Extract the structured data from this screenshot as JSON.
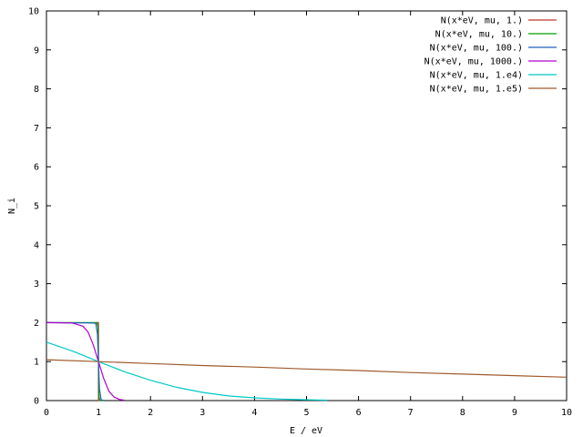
{
  "chart_data": {
    "type": "line",
    "title": "",
    "xlabel": "E / eV",
    "ylabel": "N_i",
    "xlim": [
      0,
      10
    ],
    "ylim": [
      0,
      10
    ],
    "xticks": [
      0,
      1,
      2,
      3,
      4,
      5,
      6,
      7,
      8,
      9,
      10
    ],
    "yticks": [
      0,
      1,
      2,
      3,
      4,
      5,
      6,
      7,
      8,
      9,
      10
    ],
    "grid": false,
    "legend_position": "top-right",
    "series": [
      {
        "name": "N(x*eV, mu, 1.)",
        "color": "#c0392b",
        "x": [
          0.95,
          1.0,
          1.0,
          1.05
        ],
        "y": [
          2.0,
          2.0,
          0.0,
          0.0
        ]
      },
      {
        "name": "N(x*eV, mu, 10.)",
        "color": "#00a000",
        "x": [
          0,
          0.9,
          0.97,
          0.99,
          1.0,
          1.01,
          1.03,
          1.1
        ],
        "y": [
          2.0,
          2.0,
          2.0,
          1.9,
          1.0,
          0.1,
          0.0,
          0.0
        ]
      },
      {
        "name": "N(x*eV, mu, 100.)",
        "color": "#1f5fbf",
        "x": [
          0,
          0.9,
          0.95,
          0.98,
          1.0,
          1.02,
          1.05,
          1.1
        ],
        "y": [
          2.0,
          1.99,
          1.98,
          1.7,
          1.0,
          0.3,
          0.02,
          0.0
        ]
      },
      {
        "name": "N(x*eV, mu, 1000.)",
        "color": "#b000d0",
        "x": [
          0,
          0.5,
          0.7,
          0.8,
          0.9,
          1.0,
          1.1,
          1.2,
          1.3,
          1.4,
          1.5
        ],
        "y": [
          2.0,
          1.99,
          1.91,
          1.76,
          1.43,
          1.0,
          0.57,
          0.24,
          0.09,
          0.03,
          0.01
        ]
      },
      {
        "name": "N(x*eV, mu, 1.e4)",
        "color": "#00c8c8",
        "x": [
          0,
          0.5,
          1.0,
          1.5,
          2.0,
          2.5,
          3.0,
          3.5,
          4.0,
          4.5,
          5.0,
          5.4
        ],
        "y": [
          1.5,
          1.27,
          1.0,
          0.74,
          0.52,
          0.34,
          0.21,
          0.12,
          0.07,
          0.04,
          0.02,
          0.01
        ]
      },
      {
        "name": "N(x*eV, mu, 1.e5)",
        "color": "#a05a2c",
        "x": [
          0,
          1,
          2,
          3,
          4,
          5,
          6,
          7,
          8,
          9,
          10
        ],
        "y": [
          1.05,
          1.0,
          0.95,
          0.9,
          0.86,
          0.81,
          0.77,
          0.72,
          0.68,
          0.64,
          0.6
        ]
      }
    ]
  }
}
